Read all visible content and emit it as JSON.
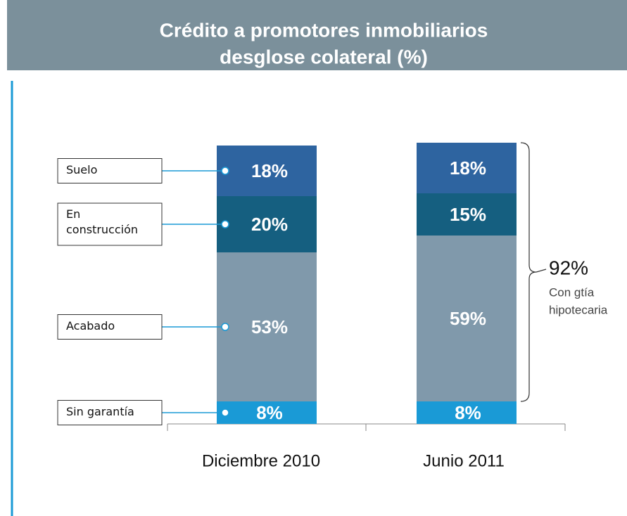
{
  "chart_data": {
    "type": "stacked_bar",
    "title": [
      "Crédito a promotores inmobiliarios",
      "desglose colateral (%)"
    ],
    "categories": [
      "Diciembre 2010",
      "Junio 2011"
    ],
    "series": [
      {
        "name": "Sin garantía",
        "color": "#1a9ad6",
        "values": [
          8,
          8
        ],
        "value_labels": [
          "8%",
          "8%"
        ]
      },
      {
        "name": "Acabado",
        "color": "#8099ab",
        "values": [
          53,
          59
        ],
        "value_labels": [
          "53%",
          "59%"
        ]
      },
      {
        "name": "En construcción",
        "color": "#155f80",
        "values": [
          20,
          15
        ],
        "value_labels": [
          "20%",
          "15%"
        ]
      },
      {
        "name": "Suelo",
        "color": "#2e64a0",
        "values": [
          18,
          18
        ],
        "value_labels": [
          "18%",
          "18%"
        ]
      }
    ],
    "ylim": [
      0,
      100
    ],
    "annotation": {
      "value": 92,
      "label": "92%",
      "lines": [
        "Con gtía",
        "hipotecaria"
      ]
    }
  }
}
